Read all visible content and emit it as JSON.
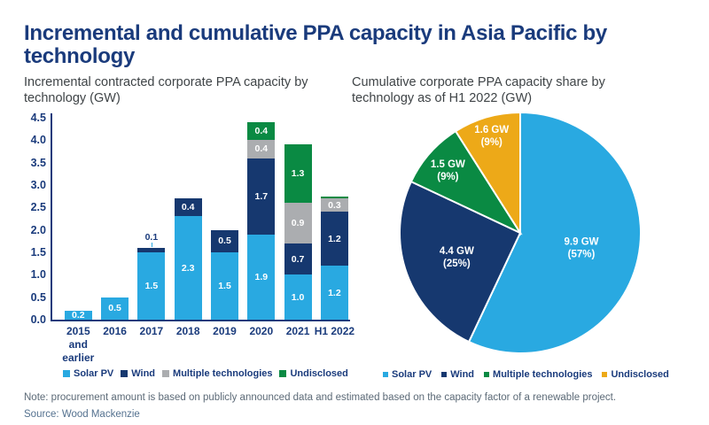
{
  "header": {
    "title": "Incremental and cumulative PPA capacity in Asia Pacific by technology"
  },
  "bar_panel": {
    "subtitle": "Incremental contracted corporate PPA capacity by technology (GW)",
    "legend": [
      {
        "label": "Solar PV",
        "color": "#29A9E1"
      },
      {
        "label": "Wind",
        "color": "#16386F"
      },
      {
        "label": "Multiple technologies",
        "color": "#ABADB0"
      },
      {
        "label": "Undisclosed",
        "color": "#0A8A43"
      }
    ]
  },
  "pie_panel": {
    "subtitle": "Cumulative corporate PPA capacity share by technology as of H1 2022 (GW)",
    "legend": [
      {
        "label": "Solar PV",
        "color": "#29A9E1"
      },
      {
        "label": "Wind",
        "color": "#16386F"
      },
      {
        "label": "Multiple technologies",
        "color": "#0A8A43"
      },
      {
        "label": "Undisclosed",
        "color": "#EDA918"
      }
    ]
  },
  "footer": {
    "note": "Note: procurement amount is based on publicly announced data and estimated based on the capacity factor of a renewable project.",
    "source": "Source: Wood Mackenzie"
  },
  "colors": {
    "title_navy": "#1A3B7C",
    "solar_blue": "#29A9E1",
    "wind_navy": "#16386F",
    "multiple_gray": "#ABADB0",
    "undisclosed_green": "#0A8A43",
    "undisclosed_yellow": "#EDA918",
    "subtitle_gray": "#3F4447",
    "note_gray": "#5C6A77",
    "source_gray_blue": "#54718F"
  },
  "chart_data": [
    {
      "type": "bar",
      "stacked": true,
      "title": "Incremental contracted corporate PPA capacity by technology (GW)",
      "categories": [
        [
          "2015",
          "and",
          "earlier"
        ],
        [
          "2016"
        ],
        [
          "2017"
        ],
        [
          "2018"
        ],
        [
          "2019"
        ],
        [
          "2020"
        ],
        [
          "2021"
        ],
        [
          "H1 2022"
        ]
      ],
      "series": [
        {
          "name": "Solar PV",
          "color": "#29A9E1",
          "values": [
            0.2,
            0.5,
            1.5,
            2.3,
            1.5,
            1.9,
            1.0,
            1.2
          ]
        },
        {
          "name": "Wind",
          "color": "#16386F",
          "values": [
            0,
            0,
            0.1,
            0.4,
            0.5,
            1.7,
            0.7,
            1.2
          ]
        },
        {
          "name": "Multiple technologies",
          "color": "#ABADB0",
          "values": [
            0,
            0,
            0,
            0,
            0,
            0.4,
            0.9,
            0.3
          ]
        },
        {
          "name": "Undisclosed",
          "color": "#0A8A43",
          "values": [
            0,
            0,
            0,
            0,
            0,
            0.4,
            1.3,
            0.05
          ]
        }
      ],
      "ylim": [
        0,
        4.5
      ],
      "ytick_step": 0.5,
      "ytick_labels": [
        "0.0",
        "0.5",
        "1.0",
        "1.5",
        "2.0",
        "2.5",
        "3.0",
        "3.5",
        "4.0",
        "4.5"
      ],
      "grid": false,
      "data_labels": true,
      "legend_position": "bottom"
    },
    {
      "type": "pie",
      "title": "Cumulative corporate PPA capacity share by technology as of H1 2022 (GW)",
      "slices": [
        {
          "name": "Solar PV",
          "gw": 9.9,
          "pct": 57,
          "color": "#29A9E1",
          "label_lines": [
            "9.9 GW",
            "(57%)"
          ]
        },
        {
          "name": "Wind",
          "gw": 4.4,
          "pct": 25,
          "color": "#16386F",
          "label_lines": [
            "4.4 GW",
            "(25%)"
          ]
        },
        {
          "name": "Multiple technologies",
          "gw": 1.5,
          "pct": 9,
          "color": "#0A8A43",
          "label_lines": [
            "1.5 GW",
            "(9%)"
          ]
        },
        {
          "name": "Undisclosed",
          "gw": 1.6,
          "pct": 9,
          "color": "#EDA918",
          "label_lines": [
            "1.6 GW",
            "(9%)"
          ]
        }
      ],
      "start_angle_deg": 0,
      "direction": "clockwise",
      "legend_position": "bottom"
    }
  ]
}
